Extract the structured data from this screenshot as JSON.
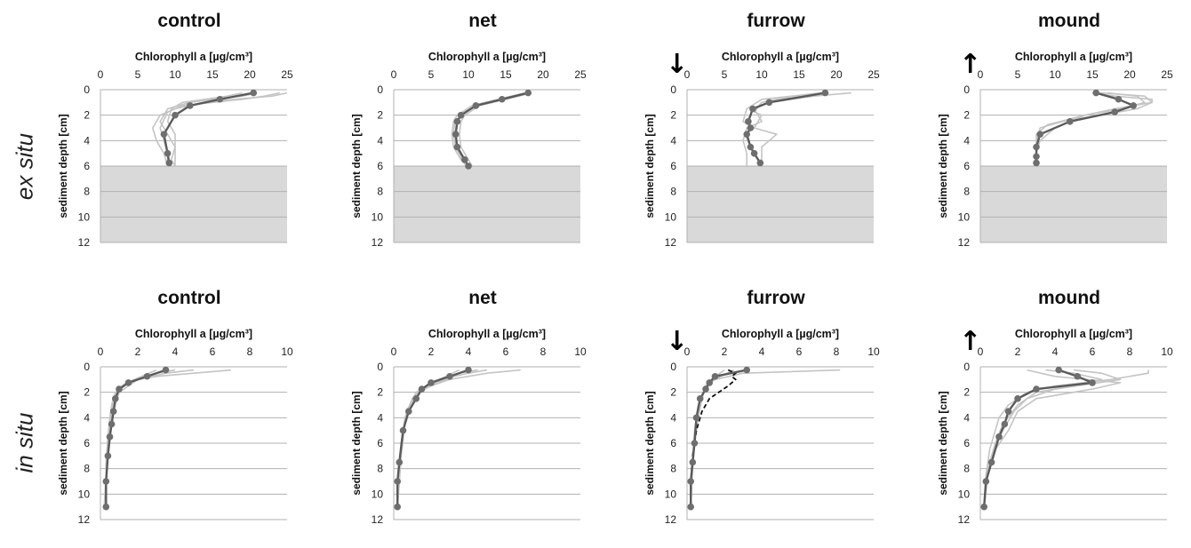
{
  "row_labels": [
    "ex situ",
    "in situ"
  ],
  "arrow_icons": {
    "furrow": "↓",
    "mound": "↑"
  },
  "colors": {
    "replicate": "#c4c4c4",
    "mean": "#5a5a5a",
    "marker": "#6e6e6e",
    "shade": "#d9d9d9",
    "grid": "#b0b0b0",
    "dashed": "#111111"
  },
  "chart_data": [
    {
      "type": "line",
      "title": "control",
      "xlabel": "Chlorophyll a [µg/cm³]",
      "ylabel": "sediment depth [cm]",
      "xlim": [
        0,
        25
      ],
      "xticks": [
        0,
        5,
        10,
        15,
        20,
        25
      ],
      "ylim": [
        0,
        12
      ],
      "yticks": [
        0,
        2,
        4,
        6,
        8,
        10,
        12
      ],
      "shaded_below": 6,
      "arrow": null,
      "series": [
        {
          "role": "mean",
          "x": [
            20.5,
            16,
            12,
            10,
            8.5,
            9,
            9.2
          ],
          "y": [
            0.25,
            0.75,
            1.25,
            2,
            3.5,
            5,
            5.75
          ]
        },
        {
          "role": "replicate",
          "x": [
            24,
            22,
            19,
            15,
            11,
            9,
            8,
            8.5,
            9,
            9
          ],
          "y": [
            0.25,
            0.5,
            0.75,
            1,
            1.25,
            1.75,
            3,
            4,
            5,
            6
          ]
        },
        {
          "role": "replicate",
          "x": [
            25,
            23,
            18,
            14,
            10,
            8,
            7,
            7.5,
            8.5,
            9
          ],
          "y": [
            0.25,
            0.5,
            0.75,
            1,
            1.5,
            2,
            3,
            4,
            5,
            6
          ]
        },
        {
          "role": "replicate",
          "x": [
            21,
            19,
            15,
            12,
            9,
            8,
            9,
            10,
            9.5,
            10
          ],
          "y": [
            0.25,
            0.5,
            0.75,
            1,
            1.5,
            2.5,
            3.5,
            4.5,
            5.5,
            6
          ]
        },
        {
          "role": "replicate",
          "x": [
            19,
            17,
            14,
            11,
            9.5,
            9,
            10,
            10,
            10,
            10
          ],
          "y": [
            0.25,
            0.5,
            0.75,
            1,
            1.5,
            2.5,
            3.5,
            4.5,
            5.5,
            6
          ]
        }
      ]
    },
    {
      "type": "line",
      "title": "net",
      "xlabel": "Chlorophyll a [µg/cm³]",
      "ylabel": "sediment depth [cm]",
      "xlim": [
        0,
        25
      ],
      "xticks": [
        0,
        5,
        10,
        15,
        20,
        25
      ],
      "ylim": [
        0,
        12
      ],
      "yticks": [
        0,
        2,
        4,
        6,
        8,
        10,
        12
      ],
      "shaded_below": 6,
      "arrow": null,
      "series": [
        {
          "role": "mean",
          "x": [
            18,
            14.5,
            11,
            9,
            8.5,
            8.3,
            8.5,
            9.5,
            10
          ],
          "y": [
            0.25,
            0.75,
            1.25,
            2,
            2.5,
            3.5,
            4.5,
            5.5,
            6
          ]
        },
        {
          "role": "replicate",
          "x": [
            18.5,
            15,
            11.5,
            9.5,
            9,
            8.8,
            9,
            10,
            10.5
          ],
          "y": [
            0.25,
            0.75,
            1.25,
            2,
            2.5,
            3.5,
            4.5,
            5.5,
            6
          ]
        },
        {
          "role": "replicate",
          "x": [
            17.5,
            14,
            10.5,
            8.5,
            8,
            7.8,
            8,
            9,
            9.8
          ],
          "y": [
            0.25,
            0.75,
            1.25,
            2,
            2.5,
            3.5,
            4.5,
            5.5,
            6
          ]
        },
        {
          "role": "replicate",
          "x": [
            18,
            14.8,
            11,
            9,
            8.2,
            8,
            8.3,
            9.2,
            10.2
          ],
          "y": [
            0.25,
            0.75,
            1.25,
            2,
            2.5,
            3.5,
            4.5,
            5.5,
            6
          ]
        }
      ]
    },
    {
      "type": "line",
      "title": "furrow",
      "xlabel": "Chlorophyll a [µg/cm³]",
      "ylabel": "sediment depth [cm]",
      "xlim": [
        0,
        25
      ],
      "xticks": [
        0,
        5,
        10,
        15,
        20,
        25
      ],
      "ylim": [
        0,
        12
      ],
      "yticks": [
        0,
        2,
        4,
        6,
        8,
        10,
        12
      ],
      "shaded_below": 6,
      "arrow": "down",
      "series": [
        {
          "role": "mean",
          "x": [
            18.5,
            11,
            8.8,
            8.2,
            8.5,
            8,
            8.5,
            9,
            9.8
          ],
          "y": [
            0.25,
            1,
            1.5,
            2.5,
            3,
            3.5,
            4.5,
            5,
            5.75
          ]
        },
        {
          "role": "replicate",
          "x": [
            22,
            17,
            11,
            9,
            10,
            8,
            7.5,
            8,
            8
          ],
          "y": [
            0.25,
            0.5,
            1,
            1.5,
            2.5,
            3,
            4,
            5,
            6
          ]
        },
        {
          "role": "replicate",
          "x": [
            19,
            12,
            10,
            9,
            10,
            9,
            12,
            10,
            10
          ],
          "y": [
            0.25,
            0.75,
            1,
            1.75,
            2,
            3,
            3.5,
            4.5,
            6
          ]
        },
        {
          "role": "replicate",
          "x": [
            18,
            10,
            8,
            7.5,
            9,
            7.8,
            8.5,
            9,
            10
          ],
          "y": [
            0.25,
            0.75,
            1.5,
            2.5,
            3,
            3.5,
            4.5,
            5,
            6
          ]
        }
      ]
    },
    {
      "type": "line",
      "title": "mound",
      "xlabel": "Chlorophyll a [µg/cm³]",
      "ylabel": "sediment depth [cm]",
      "xlim": [
        0,
        25
      ],
      "xticks": [
        0,
        5,
        10,
        15,
        20,
        25
      ],
      "ylim": [
        0,
        12
      ],
      "yticks": [
        0,
        2,
        4,
        6,
        8,
        10,
        12
      ],
      "shaded_below": 6,
      "arrow": "up",
      "series": [
        {
          "role": "mean",
          "x": [
            15.5,
            18.5,
            20.5,
            18,
            12,
            8,
            7.5,
            7.5,
            7.5
          ],
          "y": [
            0.25,
            0.75,
            1.25,
            1.75,
            2.5,
            3.5,
            4.5,
            5.25,
            5.75
          ]
        },
        {
          "role": "replicate",
          "x": [
            15,
            18,
            23,
            23,
            18,
            14,
            10,
            8,
            7.5,
            7.5
          ],
          "y": [
            0.25,
            0.5,
            0.75,
            1,
            1.5,
            2,
            3,
            4,
            5,
            6
          ]
        },
        {
          "role": "replicate",
          "x": [
            16,
            22,
            23,
            21,
            16,
            11,
            8,
            7.5,
            7.5,
            7.3
          ],
          "y": [
            0.25,
            0.5,
            1,
            1.5,
            2,
            2.5,
            3,
            4,
            5,
            6
          ]
        },
        {
          "role": "replicate",
          "x": [
            17,
            21,
            22,
            19,
            14,
            9,
            7.5,
            7.5,
            7.5,
            7.2
          ],
          "y": [
            0.25,
            0.5,
            1,
            1.5,
            2,
            2.75,
            3.5,
            4.5,
            5.5,
            6
          ]
        }
      ]
    },
    {
      "type": "line",
      "title": "control",
      "xlabel": "Chlorophyll a [µg/cm³]",
      "ylabel": "sediment depth [cm]",
      "xlim": [
        0,
        10
      ],
      "xticks": [
        0,
        2,
        4,
        6,
        8,
        10
      ],
      "ylim": [
        0,
        12
      ],
      "yticks": [
        0,
        2,
        4,
        6,
        8,
        10,
        12
      ],
      "shaded_below": null,
      "arrow": null,
      "series": [
        {
          "role": "mean",
          "x": [
            3.5,
            2.5,
            1.5,
            1,
            0.8,
            0.7,
            0.6,
            0.5,
            0.4,
            0.3,
            0.3
          ],
          "y": [
            0.25,
            0.75,
            1.25,
            1.75,
            2.5,
            3.5,
            4.5,
            5.5,
            7,
            9,
            11
          ]
        },
        {
          "role": "replicate",
          "x": [
            7,
            5,
            3,
            2,
            1.2,
            0.8,
            0.7,
            0.5,
            0.4,
            0.3,
            0.3
          ],
          "y": [
            0.25,
            0.5,
            0.75,
            1,
            1.5,
            2.5,
            3.5,
            5,
            7,
            9,
            11
          ]
        },
        {
          "role": "replicate",
          "x": [
            5,
            3.5,
            2,
            1.2,
            0.8,
            0.6,
            0.5,
            0.4,
            0.3,
            0.3
          ],
          "y": [
            0.25,
            0.5,
            1,
            1.5,
            2,
            3,
            4,
            5.5,
            7.5,
            11
          ]
        },
        {
          "role": "replicate",
          "x": [
            3,
            2.2,
            1.4,
            0.9,
            0.7,
            0.6,
            0.5,
            0.4,
            0.3,
            0.2
          ],
          "y": [
            0.25,
            0.75,
            1.25,
            1.75,
            2.5,
            3.5,
            5,
            6.5,
            8.5,
            11
          ]
        },
        {
          "role": "replicate",
          "x": [
            4,
            3,
            2,
            1.5,
            1,
            0.8,
            0.6,
            0.5,
            0.3,
            0.3
          ],
          "y": [
            0.25,
            0.5,
            1,
            1.5,
            2,
            3,
            4.5,
            6,
            8,
            11
          ]
        }
      ]
    },
    {
      "type": "line",
      "title": "net",
      "xlabel": "Chlorophyll a [µg/cm³]",
      "ylabel": "sediment depth [cm]",
      "xlim": [
        0,
        10
      ],
      "xticks": [
        0,
        2,
        4,
        6,
        8,
        10
      ],
      "ylim": [
        0,
        12
      ],
      "yticks": [
        0,
        2,
        4,
        6,
        8,
        10,
        12
      ],
      "shaded_below": null,
      "arrow": null,
      "series": [
        {
          "role": "mean",
          "x": [
            4,
            3,
            2,
            1.5,
            1.2,
            0.8,
            0.5,
            0.3,
            0.2,
            0.2
          ],
          "y": [
            0.25,
            0.75,
            1.25,
            1.75,
            2.5,
            3.5,
            5,
            7.5,
            9,
            11
          ]
        },
        {
          "role": "replicate",
          "x": [
            6.8,
            5,
            3,
            2,
            1.3,
            0.9,
            0.6,
            0.4,
            0.3,
            0.2
          ],
          "y": [
            0.25,
            0.5,
            1,
            1.5,
            2,
            3,
            4.5,
            6.5,
            9,
            11
          ]
        },
        {
          "role": "replicate",
          "x": [
            5,
            4,
            2.5,
            1.5,
            1,
            0.7,
            0.5,
            0.3,
            0.2
          ],
          "y": [
            0.25,
            0.5,
            1,
            1.75,
            2.5,
            3.5,
            5.5,
            8,
            11
          ]
        },
        {
          "role": "replicate",
          "x": [
            4.5,
            3.5,
            2.8,
            1.8,
            1,
            0.6,
            0.4,
            0.3,
            0.2
          ],
          "y": [
            0.25,
            0.5,
            1,
            1.5,
            2.5,
            4,
            6,
            8,
            11
          ]
        },
        {
          "role": "replicate",
          "x": [
            3.5,
            2.8,
            2,
            1.2,
            0.9,
            0.6,
            0.4,
            0.2
          ],
          "y": [
            0.25,
            0.75,
            1.25,
            2,
            3,
            4.5,
            7,
            11
          ]
        }
      ]
    },
    {
      "type": "line",
      "title": "furrow",
      "xlabel": "Chlorophyll a [µg/cm³]",
      "ylabel": "sediment depth [cm]",
      "xlim": [
        0,
        10
      ],
      "xticks": [
        0,
        2,
        4,
        6,
        8,
        10
      ],
      "ylim": [
        0,
        12
      ],
      "yticks": [
        0,
        2,
        4,
        6,
        8,
        10,
        12
      ],
      "shaded_below": null,
      "arrow": "down",
      "series": [
        {
          "role": "mean",
          "x": [
            3.2,
            1.5,
            1.2,
            1,
            0.7,
            0.5,
            0.4,
            0.3,
            0.2,
            0.2
          ],
          "y": [
            0.25,
            0.75,
            1.25,
            1.75,
            2.5,
            4,
            6,
            7.5,
            9,
            11
          ]
        },
        {
          "role": "replicate",
          "x": [
            8.2,
            3,
            1.5,
            1,
            0.8,
            0.6,
            0.4,
            0.3,
            0.2
          ],
          "y": [
            0.25,
            0.5,
            1,
            1.5,
            2.5,
            4,
            6,
            8,
            11
          ]
        },
        {
          "role": "replicate",
          "x": [
            2.5,
            1.8,
            1.2,
            0.9,
            0.6,
            0.4,
            0.3,
            0.2
          ],
          "y": [
            0.25,
            0.75,
            1.25,
            2,
            3,
            5,
            7.5,
            11
          ]
        },
        {
          "role": "replicate",
          "x": [
            2,
            1.3,
            1,
            0.8,
            0.5,
            0.3,
            0.2
          ],
          "y": [
            0.25,
            1,
            1.5,
            2.5,
            4,
            7,
            11
          ]
        },
        {
          "role": "dashed",
          "x": [
            2.2,
            2.6,
            2.4,
            2.6,
            2.2,
            1.2,
            0.8,
            0.5,
            0.3,
            0.2,
            0.2
          ],
          "y": [
            0.25,
            0.5,
            0.75,
            1,
            1.5,
            2.5,
            3.5,
            5,
            7,
            9,
            11
          ]
        }
      ]
    },
    {
      "type": "line",
      "title": "mound",
      "xlabel": "Chlorophyll a [µg/cm³]",
      "ylabel": "sediment depth [cm]",
      "xlim": [
        0,
        10
      ],
      "xticks": [
        0,
        2,
        4,
        6,
        8,
        10
      ],
      "ylim": [
        0,
        12
      ],
      "yticks": [
        0,
        2,
        4,
        6,
        8,
        10,
        12
      ],
      "shaded_below": null,
      "arrow": "up",
      "series": [
        {
          "role": "mean",
          "x": [
            4.2,
            5.2,
            6,
            3,
            2,
            1.5,
            1.3,
            1,
            0.6,
            0.3,
            0.2
          ],
          "y": [
            0.25,
            0.75,
            1.25,
            1.75,
            2.5,
            3.5,
            4.5,
            5.5,
            7.5,
            9,
            11
          ]
        },
        {
          "role": "replicate",
          "x": [
            9,
            9,
            7,
            4,
            2.5,
            1.5,
            1,
            0.8,
            0.5,
            0.3,
            0.2
          ],
          "y": [
            0.25,
            0.5,
            1,
            1.5,
            2,
            3,
            4,
            5,
            6.5,
            8.5,
            11
          ]
        },
        {
          "role": "replicate",
          "x": [
            2.5,
            4,
            7.5,
            6,
            3,
            2,
            1.5,
            0.8,
            0.4,
            0.2
          ],
          "y": [
            0.25,
            0.75,
            1.25,
            1.75,
            2.5,
            3.5,
            5,
            6.5,
            8.5,
            11
          ]
        },
        {
          "role": "replicate",
          "x": [
            3.5,
            5,
            6.5,
            5,
            3,
            2,
            1.2,
            0.8,
            0.4,
            0.2
          ],
          "y": [
            0.25,
            0.5,
            1,
            1.5,
            2,
            3,
            4.5,
            6,
            8,
            11
          ]
        },
        {
          "role": "replicate",
          "x": [
            5,
            6.5,
            7.5,
            4,
            2.5,
            1.8,
            1.2,
            0.7,
            0.4,
            0.2
          ],
          "y": [
            0.25,
            0.5,
            1,
            1.75,
            2.5,
            3.5,
            5,
            6.5,
            8.5,
            11
          ]
        }
      ]
    }
  ]
}
